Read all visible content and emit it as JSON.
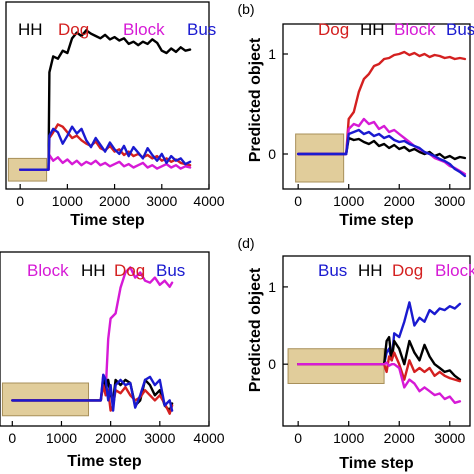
{
  "chart_data": [
    {
      "panel": "a",
      "panel_label": "",
      "type": "line",
      "xlabel": "Time step",
      "ylabel": "",
      "xlim": [
        -300,
        4000
      ],
      "ylim": [
        -0.35,
        1.3
      ],
      "xticks": [
        "0",
        "1000",
        "2000",
        "3000",
        "4000"
      ],
      "xtick_values": [
        0,
        1000,
        2000,
        3000,
        4000
      ],
      "yticks": [],
      "legend": [
        "HH",
        "Dog",
        "Block",
        "Bus"
      ],
      "highlight_box": {
        "x0": -250,
        "x1": 560,
        "y0": -0.28,
        "y1": -0.08
      },
      "series": [
        {
          "name": "HH",
          "color": "#000000",
          "x": [
            0,
            600,
            620,
            700,
            800,
            900,
            1000,
            1100,
            1200,
            1300,
            1400,
            1500,
            1600,
            1700,
            1800,
            1900,
            2000,
            2100,
            2200,
            2300,
            2400,
            2500,
            2600,
            2700,
            2800,
            2900,
            3000,
            3100,
            3200,
            3300,
            3400,
            3500,
            3600
          ],
          "y": [
            -0.18,
            -0.18,
            0.68,
            0.82,
            0.8,
            0.87,
            0.85,
            0.98,
            1.03,
            1.0,
            1.05,
            1.02,
            1.0,
            0.98,
            1.01,
            0.97,
            0.99,
            0.96,
            0.98,
            0.93,
            0.95,
            0.92,
            0.95,
            0.93,
            0.97,
            0.94,
            0.87,
            0.85,
            0.89,
            0.86,
            0.9,
            0.87,
            0.88
          ]
        },
        {
          "name": "Dog",
          "color": "#d42020",
          "x": [
            0,
            600,
            620,
            700,
            800,
            900,
            1000,
            1100,
            1200,
            1300,
            1400,
            1500,
            1600,
            1700,
            1800,
            1900,
            2000,
            2100,
            2200,
            2300,
            2400,
            2500,
            2600,
            2700,
            2800,
            2900,
            3000,
            3100,
            3200,
            3300,
            3400,
            3500,
            3600
          ],
          "y": [
            -0.18,
            -0.18,
            0.1,
            0.15,
            0.22,
            0.2,
            0.15,
            0.1,
            0.12,
            0.08,
            0.05,
            0.03,
            0.07,
            0.01,
            -0.01,
            0.03,
            -0.02,
            0.0,
            -0.05,
            -0.02,
            -0.06,
            -0.04,
            -0.07,
            -0.05,
            -0.08,
            -0.06,
            -0.1,
            -0.08,
            -0.11,
            -0.09,
            -0.12,
            -0.13,
            -0.14
          ]
        },
        {
          "name": "Block",
          "color": "#d61ad6",
          "x": [
            0,
            600,
            620,
            700,
            800,
            900,
            1000,
            1100,
            1200,
            1300,
            1400,
            1500,
            1600,
            1700,
            1800,
            1900,
            2000,
            2100,
            2200,
            2300,
            2400,
            2500,
            2600,
            2700,
            2800,
            2900,
            3000,
            3100,
            3200,
            3300,
            3400,
            3500,
            3600
          ],
          "y": [
            -0.18,
            -0.18,
            -0.05,
            -0.1,
            -0.07,
            -0.12,
            -0.09,
            -0.13,
            -0.1,
            -0.14,
            -0.11,
            -0.13,
            -0.1,
            -0.14,
            -0.12,
            -0.15,
            -0.13,
            -0.11,
            -0.15,
            -0.13,
            -0.16,
            -0.14,
            -0.12,
            -0.16,
            -0.14,
            -0.17,
            -0.15,
            -0.13,
            -0.16,
            -0.14,
            -0.17,
            -0.15,
            -0.16
          ]
        },
        {
          "name": "Bus",
          "color": "#1a1ad0",
          "x": [
            0,
            600,
            620,
            700,
            800,
            900,
            1000,
            1100,
            1200,
            1300,
            1400,
            1500,
            1600,
            1700,
            1800,
            1900,
            2000,
            2100,
            2200,
            2300,
            2400,
            2500,
            2600,
            2700,
            2800,
            2900,
            3000,
            3100,
            3200,
            3300,
            3400,
            3500,
            3600
          ],
          "y": [
            -0.18,
            -0.18,
            0.12,
            0.18,
            0.15,
            0.05,
            0.12,
            0.2,
            0.14,
            0.18,
            0.08,
            0.02,
            0.1,
            0.04,
            -0.02,
            0.06,
            0.0,
            -0.04,
            0.03,
            -0.06,
            0.02,
            -0.03,
            -0.08,
            0.01,
            -0.05,
            -0.1,
            -0.04,
            -0.12,
            -0.06,
            -0.1,
            -0.08,
            -0.13,
            -0.11
          ]
        }
      ]
    },
    {
      "panel": "b",
      "panel_label": "(b)",
      "type": "line",
      "xlabel": "Time step",
      "ylabel": "Predicted object",
      "xlim": [
        -300,
        3400
      ],
      "ylim": [
        -0.35,
        1.3
      ],
      "xticks": [
        "0",
        "1000",
        "2000",
        "3000"
      ],
      "xtick_values": [
        0,
        1000,
        2000,
        3000
      ],
      "yticks": [
        "0",
        "1"
      ],
      "ytick_values": [
        0,
        1
      ],
      "legend": [
        "Dog",
        "HH",
        "Block",
        "Bus"
      ],
      "highlight_box": {
        "x0": -50,
        "x1": 900,
        "y0": -0.28,
        "y1": 0.2
      },
      "series": [
        {
          "name": "Dog",
          "color": "#d42020",
          "x": [
            0,
            950,
            1000,
            1100,
            1200,
            1300,
            1400,
            1500,
            1600,
            1700,
            1800,
            1900,
            2000,
            2100,
            2200,
            2300,
            2400,
            2500,
            2600,
            2700,
            2800,
            2900,
            3000,
            3100,
            3200,
            3300
          ],
          "y": [
            0.0,
            0.0,
            0.35,
            0.42,
            0.62,
            0.75,
            0.8,
            0.88,
            0.9,
            0.95,
            0.96,
            0.99,
            1.0,
            1.02,
            0.99,
            1.01,
            0.98,
            1.0,
            0.97,
            0.99,
            0.98,
            0.96,
            0.97,
            0.95,
            0.96,
            0.95
          ]
        },
        {
          "name": "HH",
          "color": "#000000",
          "x": [
            0,
            950,
            1000,
            1100,
            1200,
            1300,
            1400,
            1500,
            1600,
            1700,
            1800,
            1900,
            2000,
            2100,
            2200,
            2300,
            2400,
            2500,
            2600,
            2700,
            2800,
            2900,
            3000,
            3100,
            3200,
            3300
          ],
          "y": [
            0.0,
            0.0,
            0.16,
            0.14,
            0.15,
            0.12,
            0.1,
            0.13,
            0.08,
            0.1,
            0.06,
            0.09,
            0.05,
            0.07,
            0.03,
            0.05,
            0.02,
            0.0,
            0.02,
            -0.02,
            0.0,
            -0.04,
            -0.02,
            -0.05,
            -0.03,
            -0.04
          ]
        },
        {
          "name": "Block",
          "color": "#d61ad6",
          "x": [
            0,
            950,
            1000,
            1100,
            1200,
            1300,
            1400,
            1500,
            1600,
            1700,
            1800,
            1900,
            2000,
            2100,
            2200,
            2300,
            2400,
            2500,
            2600,
            2700,
            2800,
            2900,
            3000,
            3100,
            3200,
            3300
          ],
          "y": [
            0.0,
            0.0,
            0.25,
            0.3,
            0.28,
            0.35,
            0.3,
            0.32,
            0.25,
            0.28,
            0.22,
            0.24,
            0.2,
            0.16,
            0.12,
            0.08,
            0.05,
            0.02,
            0.0,
            -0.04,
            -0.06,
            -0.08,
            -0.12,
            -0.14,
            -0.17,
            -0.2
          ]
        },
        {
          "name": "Bus",
          "color": "#1a1ad0",
          "x": [
            0,
            950,
            1000,
            1100,
            1200,
            1300,
            1400,
            1500,
            1600,
            1700,
            1800,
            1900,
            2000,
            2100,
            2200,
            2300,
            2400,
            2500,
            2600,
            2700,
            2800,
            2900,
            3000,
            3100,
            3200,
            3300
          ],
          "y": [
            0.0,
            0.0,
            0.2,
            0.22,
            0.24,
            0.2,
            0.22,
            0.18,
            0.2,
            0.16,
            0.18,
            0.14,
            0.12,
            0.13,
            0.1,
            0.08,
            0.06,
            0.02,
            0.0,
            -0.02,
            -0.05,
            -0.07,
            -0.1,
            -0.15,
            -0.18,
            -0.22
          ]
        }
      ]
    },
    {
      "panel": "c",
      "panel_label": "",
      "type": "line",
      "xlabel": "Time step",
      "ylabel": "",
      "xlim": [
        -250,
        4000
      ],
      "ylim": [
        -0.5,
        1.2
      ],
      "xticks": [
        "0",
        "1000",
        "2000",
        "3000",
        "4000"
      ],
      "xtick_values": [
        0,
        1000,
        2000,
        3000,
        4000
      ],
      "yticks": [],
      "legend": [
        "Block",
        "HH",
        "Dog",
        "Bus"
      ],
      "highlight_box": {
        "x0": -200,
        "x1": 1550,
        "y0": -0.4,
        "y1": -0.08
      },
      "series": [
        {
          "name": "Block",
          "color": "#d61ad6",
          "x": [
            0,
            1800,
            1850,
            1900,
            1950,
            2000,
            2100,
            2200,
            2300,
            2400,
            2500,
            2600,
            2700,
            2800,
            2900,
            3000,
            3100,
            3200,
            3250
          ],
          "y": [
            -0.25,
            -0.25,
            0.0,
            -0.15,
            0.35,
            0.55,
            0.6,
            0.85,
            1.0,
            1.05,
            0.95,
            1.0,
            0.92,
            0.9,
            0.95,
            0.88,
            0.92,
            0.86,
            0.9
          ]
        },
        {
          "name": "HH",
          "color": "#000000",
          "x": [
            0,
            1800,
            1850,
            1900,
            1950,
            2000,
            2050,
            2100,
            2200,
            2300,
            2400,
            2500,
            2600,
            2700,
            2800,
            2900,
            3000,
            3100,
            3200,
            3250
          ],
          "y": [
            -0.25,
            -0.25,
            -0.05,
            -0.15,
            -0.05,
            -0.2,
            -0.25,
            -0.05,
            -0.1,
            -0.05,
            -0.08,
            -0.3,
            -0.25,
            -0.05,
            -0.1,
            -0.2,
            -0.15,
            -0.3,
            -0.35,
            -0.28
          ]
        },
        {
          "name": "Dog",
          "color": "#d42020",
          "x": [
            0,
            1800,
            1850,
            1900,
            1950,
            2000,
            2050,
            2100,
            2200,
            2300,
            2400,
            2500,
            2600,
            2700,
            2800,
            2900,
            3000,
            3100,
            3200,
            3250
          ],
          "y": [
            -0.25,
            -0.25,
            -0.1,
            -0.2,
            -0.15,
            -0.35,
            -0.3,
            -0.15,
            -0.18,
            -0.12,
            -0.2,
            -0.25,
            -0.22,
            -0.15,
            -0.2,
            -0.25,
            -0.2,
            -0.28,
            -0.38,
            -0.3
          ]
        },
        {
          "name": "Bus",
          "color": "#1a1ad0",
          "x": [
            0,
            1800,
            1850,
            1900,
            1950,
            2000,
            2050,
            2100,
            2200,
            2300,
            2400,
            2500,
            2600,
            2700,
            2800,
            2900,
            3000,
            3100,
            3200,
            3250
          ],
          "y": [
            -0.25,
            -0.25,
            0.0,
            -0.05,
            -0.25,
            -0.1,
            -0.35,
            -0.1,
            -0.05,
            -0.1,
            -0.08,
            -0.32,
            -0.2,
            -0.05,
            -0.02,
            -0.1,
            -0.05,
            -0.3,
            -0.25,
            -0.35
          ]
        }
      ]
    },
    {
      "panel": "d",
      "panel_label": "(d)",
      "type": "line",
      "xlabel": "Time step",
      "ylabel": "Predicted object",
      "xlim": [
        -300,
        3400
      ],
      "ylim": [
        -0.8,
        1.4
      ],
      "xticks": [
        "0",
        "1000",
        "2000",
        "3000"
      ],
      "xtick_values": [
        0,
        1000,
        2000,
        3000
      ],
      "yticks": [
        "0",
        "1"
      ],
      "ytick_values": [
        0,
        1
      ],
      "legend": [
        "Bus",
        "HH",
        "Dog",
        "Block"
      ],
      "highlight_box": {
        "x0": -200,
        "x1": 1700,
        "y0": -0.25,
        "y1": 0.2
      },
      "series": [
        {
          "name": "Bus",
          "color": "#1a1ad0",
          "x": [
            0,
            1700,
            1750,
            1800,
            1850,
            1900,
            2000,
            2100,
            2200,
            2300,
            2400,
            2500,
            2600,
            2700,
            2800,
            2900,
            3000,
            3100,
            3200
          ],
          "y": [
            0.0,
            0.0,
            0.15,
            0.2,
            0.05,
            0.4,
            0.35,
            0.55,
            0.8,
            0.5,
            0.6,
            0.55,
            0.7,
            0.65,
            0.72,
            0.7,
            0.75,
            0.72,
            0.78
          ]
        },
        {
          "name": "HH",
          "color": "#000000",
          "x": [
            0,
            1700,
            1750,
            1800,
            1850,
            1900,
            2000,
            2100,
            2200,
            2300,
            2400,
            2500,
            2600,
            2700,
            2800,
            2900,
            3000,
            3100,
            3200
          ],
          "y": [
            0.0,
            0.0,
            0.3,
            0.35,
            0.05,
            0.3,
            0.2,
            0.0,
            0.3,
            0.15,
            0.05,
            0.25,
            0.1,
            0.0,
            -0.05,
            -0.1,
            -0.08,
            -0.15,
            -0.2
          ]
        },
        {
          "name": "Dog",
          "color": "#d42020",
          "x": [
            0,
            1700,
            1750,
            1800,
            1850,
            1900,
            2000,
            2100,
            2200,
            2300,
            2400,
            2500,
            2600,
            2700,
            2800,
            2900,
            3000,
            3100,
            3200
          ],
          "y": [
            0.0,
            0.0,
            -0.1,
            0.1,
            0.05,
            0.15,
            0.0,
            -0.2,
            0.05,
            -0.1,
            -0.05,
            -0.1,
            -0.05,
            -0.15,
            -0.1,
            -0.15,
            -0.18,
            -0.2,
            -0.22
          ]
        },
        {
          "name": "Block",
          "color": "#d61ad6",
          "x": [
            0,
            1700,
            1750,
            1800,
            1850,
            1900,
            2000,
            2100,
            2200,
            2300,
            2400,
            2500,
            2600,
            2700,
            2800,
            2900,
            3000,
            3100,
            3200
          ],
          "y": [
            0.0,
            0.0,
            0.02,
            -0.02,
            0.0,
            0.0,
            -0.05,
            -0.3,
            -0.2,
            -0.25,
            -0.35,
            -0.3,
            -0.35,
            -0.4,
            -0.38,
            -0.45,
            -0.42,
            -0.5,
            -0.48
          ]
        }
      ]
    }
  ]
}
